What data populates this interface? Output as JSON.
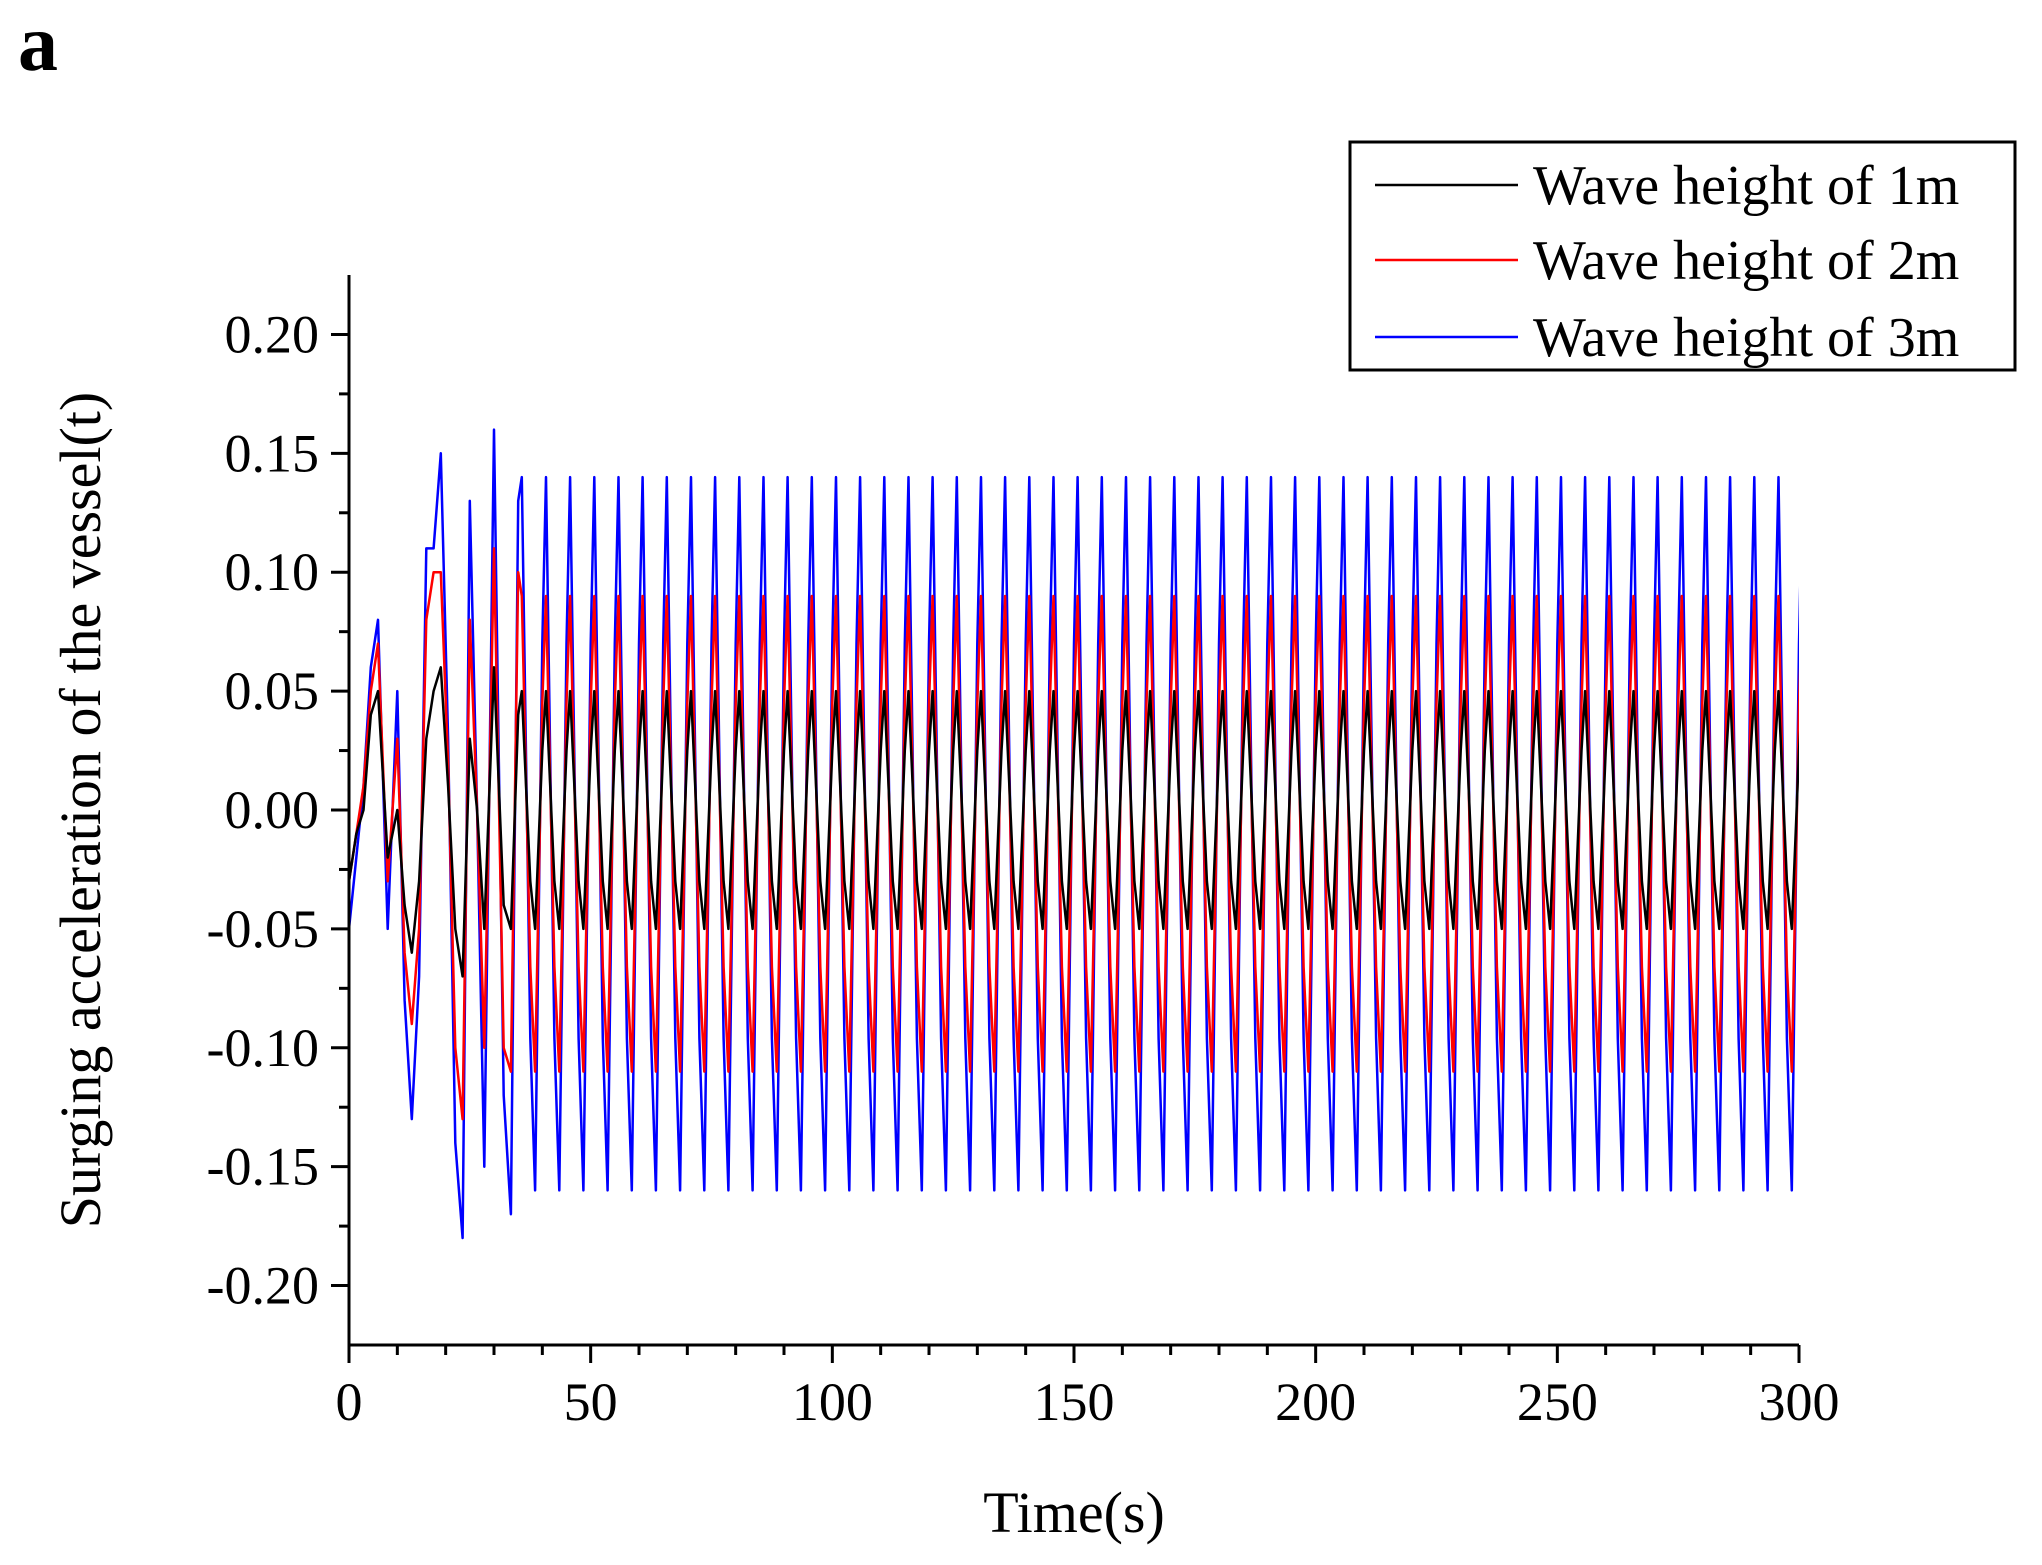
{
  "panel_label": "a",
  "chart_data": {
    "type": "line",
    "title": "",
    "xlabel": "Time(s)",
    "ylabel": "Surging acceleration of the vessel(t)",
    "xlim": [
      0,
      300
    ],
    "ylim": [
      -0.225,
      0.225
    ],
    "x_ticks": [
      0,
      50,
      100,
      150,
      200,
      250,
      300
    ],
    "x_tick_labels": [
      "0",
      "50",
      "100",
      "150",
      "200",
      "250",
      "300"
    ],
    "y_ticks": [
      -0.2,
      -0.15,
      -0.1,
      -0.05,
      0.0,
      0.05,
      0.1,
      0.15,
      0.2
    ],
    "y_tick_labels": [
      "-0.20",
      "-0.15",
      "-0.10",
      "-0.05",
      "0.00",
      "0.05",
      "0.10",
      "0.15",
      "0.20"
    ],
    "legend_position": "top-right",
    "grid": false,
    "wave_period_s": 5,
    "series": [
      {
        "name": "Wave height of 1m",
        "color": "#000000",
        "transient": {
          "x": [
            0,
            1.5,
            3,
            4.5,
            6,
            8,
            10,
            11.5,
            13,
            14.5,
            16,
            17.5,
            19,
            20.5,
            22,
            23.5,
            25,
            26.5,
            28,
            30,
            32,
            33.5,
            35
          ],
          "y": [
            -0.03,
            -0.01,
            0.0,
            0.04,
            0.05,
            -0.02,
            0.0,
            -0.04,
            -0.06,
            -0.03,
            0.03,
            0.05,
            0.06,
            0.01,
            -0.05,
            -0.07,
            0.03,
            0.0,
            -0.05,
            0.06,
            -0.04,
            -0.05,
            0.04
          ]
        },
        "steady_peak": 0.05,
        "steady_trough": -0.05
      },
      {
        "name": "Wave height of 2m",
        "color": "#ff0000",
        "transient": {
          "x": [
            0,
            1.5,
            3,
            4.5,
            6,
            8,
            10,
            11.5,
            13,
            14.5,
            16,
            17.5,
            19,
            20.5,
            22,
            23.5,
            25,
            26.5,
            28,
            30,
            32,
            33.5,
            35
          ],
          "y": [
            -0.03,
            -0.01,
            0.01,
            0.05,
            0.07,
            -0.03,
            0.03,
            -0.06,
            -0.09,
            -0.05,
            0.08,
            0.1,
            0.1,
            0.02,
            -0.1,
            -0.13,
            0.08,
            0.0,
            -0.1,
            0.11,
            -0.1,
            -0.11,
            0.1
          ]
        },
        "steady_peak": 0.09,
        "steady_trough": -0.11
      },
      {
        "name": "Wave height of 3m",
        "color": "#0000ff",
        "transient": {
          "x": [
            0,
            1.5,
            3,
            4.5,
            6,
            8,
            10,
            11.5,
            13,
            14.5,
            16,
            17.5,
            19,
            20.5,
            22,
            23.5,
            25,
            26.5,
            28,
            30,
            32,
            33.5,
            35
          ],
          "y": [
            -0.05,
            -0.02,
            0.01,
            0.06,
            0.08,
            -0.05,
            0.05,
            -0.08,
            -0.13,
            -0.07,
            0.11,
            0.11,
            0.15,
            0.03,
            -0.14,
            -0.18,
            0.13,
            0.0,
            -0.15,
            0.16,
            -0.12,
            -0.17,
            0.13
          ]
        },
        "steady_peak": 0.14,
        "steady_trough": -0.16
      }
    ]
  }
}
